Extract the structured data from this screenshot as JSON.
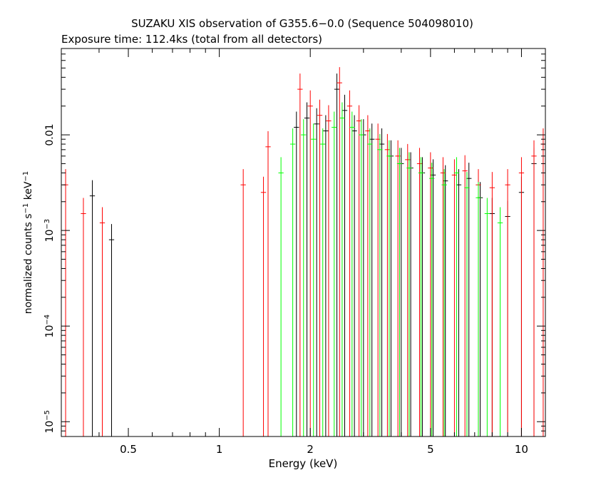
{
  "chart_data": {
    "type": "scatter",
    "title": "SUZAKU XIS observation of G355.6−0.0 (Sequence 504098010)",
    "subtitle": "Exposure time: 112.4ks (total from all detectors)",
    "xlabel": "Energy (keV)",
    "ylabel": "normalized counts s",
    "ylabel_sup1": "−1",
    "ylabel_mid": " keV",
    "ylabel_sup2": "−1",
    "xscale": "log",
    "yscale": "log",
    "xlim": [
      0.3,
      12
    ],
    "ylim": [
      7e-06,
      0.08
    ],
    "x_ticks": [
      {
        "value": 0.5,
        "label": "0.5"
      },
      {
        "value": 1,
        "label": "1"
      },
      {
        "value": 2,
        "label": "2"
      },
      {
        "value": 5,
        "label": "5"
      },
      {
        "value": 10,
        "label": "10"
      }
    ],
    "y_ticks": [
      {
        "value": 0.01,
        "base": "0.01",
        "exp": ""
      },
      {
        "value": 0.001,
        "base": "10",
        "exp": "−3"
      },
      {
        "value": 0.0001,
        "base": "10",
        "exp": "−4"
      },
      {
        "value": 1e-05,
        "base": "10",
        "exp": "−5"
      }
    ],
    "series": [
      {
        "color": "#000000",
        "points": [
          {
            "x": 0.38,
            "y": 0.0023
          },
          {
            "x": 0.44,
            "y": 0.0008
          },
          {
            "x": 1.8,
            "y": 0.012
          },
          {
            "x": 1.95,
            "y": 0.015
          },
          {
            "x": 2.1,
            "y": 0.013
          },
          {
            "x": 2.25,
            "y": 0.011
          },
          {
            "x": 2.45,
            "y": 0.03
          },
          {
            "x": 2.6,
            "y": 0.018
          },
          {
            "x": 2.8,
            "y": 0.011
          },
          {
            "x": 3.0,
            "y": 0.01
          },
          {
            "x": 3.2,
            "y": 0.009
          },
          {
            "x": 3.45,
            "y": 0.008
          },
          {
            "x": 3.7,
            "y": 0.006
          },
          {
            "x": 4.0,
            "y": 0.005
          },
          {
            "x": 4.3,
            "y": 0.0045
          },
          {
            "x": 4.7,
            "y": 0.004
          },
          {
            "x": 5.1,
            "y": 0.0038
          },
          {
            "x": 5.6,
            "y": 0.0033
          },
          {
            "x": 6.2,
            "y": 0.003
          },
          {
            "x": 6.7,
            "y": 0.0035
          },
          {
            "x": 7.3,
            "y": 0.0022
          },
          {
            "x": 8.0,
            "y": 0.0015
          },
          {
            "x": 9.0,
            "y": 0.0014
          },
          {
            "x": 10.0,
            "y": 0.0025
          },
          {
            "x": 11.0,
            "y": 0.005
          }
        ]
      },
      {
        "color": "#ff0000",
        "points": [
          {
            "x": 0.31,
            "y": 0.003
          },
          {
            "x": 0.355,
            "y": 0.0015
          },
          {
            "x": 0.41,
            "y": 0.0012
          },
          {
            "x": 1.2,
            "y": 0.003
          },
          {
            "x": 1.4,
            "y": 0.0025
          },
          {
            "x": 1.45,
            "y": 0.0075
          },
          {
            "x": 1.85,
            "y": 0.03
          },
          {
            "x": 2.0,
            "y": 0.02
          },
          {
            "x": 2.15,
            "y": 0.016
          },
          {
            "x": 2.3,
            "y": 0.014
          },
          {
            "x": 2.5,
            "y": 0.035
          },
          {
            "x": 2.7,
            "y": 0.02
          },
          {
            "x": 2.9,
            "y": 0.014
          },
          {
            "x": 3.1,
            "y": 0.011
          },
          {
            "x": 3.35,
            "y": 0.009
          },
          {
            "x": 3.6,
            "y": 0.007
          },
          {
            "x": 3.9,
            "y": 0.006
          },
          {
            "x": 4.2,
            "y": 0.0055
          },
          {
            "x": 4.6,
            "y": 0.005
          },
          {
            "x": 5.0,
            "y": 0.0045
          },
          {
            "x": 5.5,
            "y": 0.004
          },
          {
            "x": 6.0,
            "y": 0.0038
          },
          {
            "x": 6.5,
            "y": 0.0042
          },
          {
            "x": 7.2,
            "y": 0.003
          },
          {
            "x": 8.0,
            "y": 0.0028
          },
          {
            "x": 9.0,
            "y": 0.003
          },
          {
            "x": 10.0,
            "y": 0.004
          },
          {
            "x": 11.0,
            "y": 0.006
          },
          {
            "x": 11.8,
            "y": 0.008
          }
        ]
      },
      {
        "color": "#00ff00",
        "points": [
          {
            "x": 1.6,
            "y": 0.004
          },
          {
            "x": 1.75,
            "y": 0.008
          },
          {
            "x": 1.9,
            "y": 0.01
          },
          {
            "x": 2.05,
            "y": 0.009
          },
          {
            "x": 2.2,
            "y": 0.008
          },
          {
            "x": 2.4,
            "y": 0.012
          },
          {
            "x": 2.55,
            "y": 0.015
          },
          {
            "x": 2.75,
            "y": 0.012
          },
          {
            "x": 2.95,
            "y": 0.01
          },
          {
            "x": 3.15,
            "y": 0.008
          },
          {
            "x": 3.4,
            "y": 0.007
          },
          {
            "x": 3.65,
            "y": 0.006
          },
          {
            "x": 3.95,
            "y": 0.005
          },
          {
            "x": 4.25,
            "y": 0.0045
          },
          {
            "x": 4.65,
            "y": 0.004
          },
          {
            "x": 5.05,
            "y": 0.0035
          },
          {
            "x": 5.55,
            "y": 0.003
          },
          {
            "x": 6.1,
            "y": 0.004
          },
          {
            "x": 6.6,
            "y": 0.0028
          },
          {
            "x": 7.2,
            "y": 0.0022
          },
          {
            "x": 7.7,
            "y": 0.0015
          },
          {
            "x": 8.5,
            "y": 0.0012
          }
        ]
      }
    ]
  }
}
